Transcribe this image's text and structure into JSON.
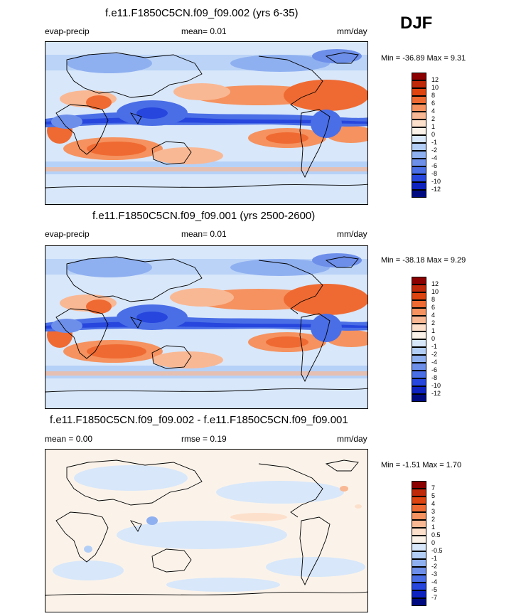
{
  "season": "DJF",
  "panels": [
    {
      "title": "f.e11.F1850C5CN.f09_f09.002 (yrs 6-35)",
      "left_label": "evap-precip",
      "center_label": "mean=  0.01",
      "right_label": "mm/day",
      "minmax": "Min = -36.89 Max =   9.31",
      "field_mean": 0.01,
      "field_min": -36.89,
      "field_max": 9.31,
      "colorbar": {
        "colors": [
          "#8b0000",
          "#c0280a",
          "#dd4410",
          "#ef6a32",
          "#f5925f",
          "#f9b894",
          "#fde0cc",
          "#fbf3ea",
          "#d8e7fa",
          "#b3cef6",
          "#8fb0f0",
          "#6d8fea",
          "#4a6ee6",
          "#2646dd",
          "#0e22c0",
          "#000a80"
        ],
        "labels": [
          "12",
          "10",
          "8",
          "6",
          "4",
          "2",
          "1",
          "0",
          "-1",
          "-2",
          "-4",
          "-6",
          "-8",
          "-10",
          "-12"
        ]
      }
    },
    {
      "title": "f.e11.F1850C5CN.f09_f09.001 (yrs 2500-2600)",
      "left_label": "evap-precip",
      "center_label": "mean=  0.01",
      "right_label": "mm/day",
      "minmax": "Min = -38.18 Max =   9.29",
      "field_mean": 0.01,
      "field_min": -38.18,
      "field_max": 9.29,
      "colorbar": {
        "colors": [
          "#8b0000",
          "#c0280a",
          "#dd4410",
          "#ef6a32",
          "#f5925f",
          "#f9b894",
          "#fde0cc",
          "#fbf3ea",
          "#d8e7fa",
          "#b3cef6",
          "#8fb0f0",
          "#6d8fea",
          "#4a6ee6",
          "#2646dd",
          "#0e22c0",
          "#000a80"
        ],
        "labels": [
          "12",
          "10",
          "8",
          "6",
          "4",
          "2",
          "1",
          "0",
          "-1",
          "-2",
          "-4",
          "-6",
          "-8",
          "-10",
          "-12"
        ]
      }
    },
    {
      "title": "f.e11.F1850C5CN.f09_f09.002 - f.e11.F1850C5CN.f09_f09.001",
      "left_label": "mean =  0.00",
      "center_label": "rmse =  0.19",
      "right_label": "mm/day",
      "minmax": "Min = -1.51 Max =   1.70",
      "field_mean": 0.0,
      "field_rmse": 0.19,
      "field_min": -1.51,
      "field_max": 1.7,
      "colorbar": {
        "colors": [
          "#8b0000",
          "#c0280a",
          "#dd4410",
          "#ef6a32",
          "#f5925f",
          "#f9b894",
          "#fde0cc",
          "#fbf3ea",
          "#d8e7fa",
          "#b3cef6",
          "#8fb0f0",
          "#6d8fea",
          "#4a6ee6",
          "#2646dd",
          "#0e22c0",
          "#000a80"
        ],
        "labels": [
          "7",
          "5",
          "4",
          "3",
          "2",
          "1",
          "0.5",
          "0",
          "-0.5",
          "-1",
          "-2",
          "-3",
          "-4",
          "-5",
          "-7"
        ]
      }
    }
  ]
}
